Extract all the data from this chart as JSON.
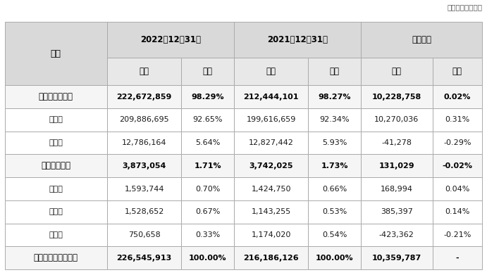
{
  "unit_text": "单位：人民币千元",
  "header_row1": [
    "项目",
    "2022年12月31日",
    "",
    "2021年12月31日",
    "",
    "期间变动",
    ""
  ],
  "header_row2": [
    "",
    "金额",
    "占比",
    "金额",
    "占比",
    "金额",
    "占比"
  ],
  "rows": [
    {
      "label": "非不良贷款小计",
      "bold": true,
      "data": [
        "222,672,859",
        "98.29%",
        "212,444,101",
        "98.27%",
        "10,228,758",
        "0.02%"
      ]
    },
    {
      "label": "正常类",
      "bold": false,
      "data": [
        "209,886,695",
        "92.65%",
        "199,616,659",
        "92.34%",
        "10,270,036",
        "0.31%"
      ]
    },
    {
      "label": "关注类",
      "bold": false,
      "data": [
        "12,786,164",
        "5.64%",
        "12,827,442",
        "5.93%",
        "-41,278",
        "-0.29%"
      ]
    },
    {
      "label": "不良贷款小计",
      "bold": true,
      "data": [
        "3,873,054",
        "1.71%",
        "3,742,025",
        "1.73%",
        "131,029",
        "-0.02%"
      ]
    },
    {
      "label": "次级类",
      "bold": false,
      "data": [
        "1,593,744",
        "0.70%",
        "1,424,750",
        "0.66%",
        "168,994",
        "0.04%"
      ]
    },
    {
      "label": "可疑类",
      "bold": false,
      "data": [
        "1,528,652",
        "0.67%",
        "1,143,255",
        "0.53%",
        "385,397",
        "0.14%"
      ]
    },
    {
      "label": "损失类",
      "bold": false,
      "data": [
        "750,658",
        "0.33%",
        "1,174,020",
        "0.54%",
        "-423,362",
        "-0.21%"
      ]
    },
    {
      "label": "发放贷款和垫款本金",
      "bold": true,
      "data": [
        "226,545,913",
        "100.00%",
        "216,186,126",
        "100.00%",
        "10,359,787",
        "-"
      ]
    }
  ],
  "bg_header": "#d9d9d9",
  "bg_subheader": "#e8e8e8",
  "bg_bold_row": "#f5f5f5",
  "bg_normal_row": "#ffffff",
  "border_color": "#aaaaaa",
  "text_color": "#1a1a1a",
  "bold_text_color": "#000000",
  "unit_color": "#555555",
  "figsize": [
    6.91,
    3.91
  ],
  "dpi": 100
}
